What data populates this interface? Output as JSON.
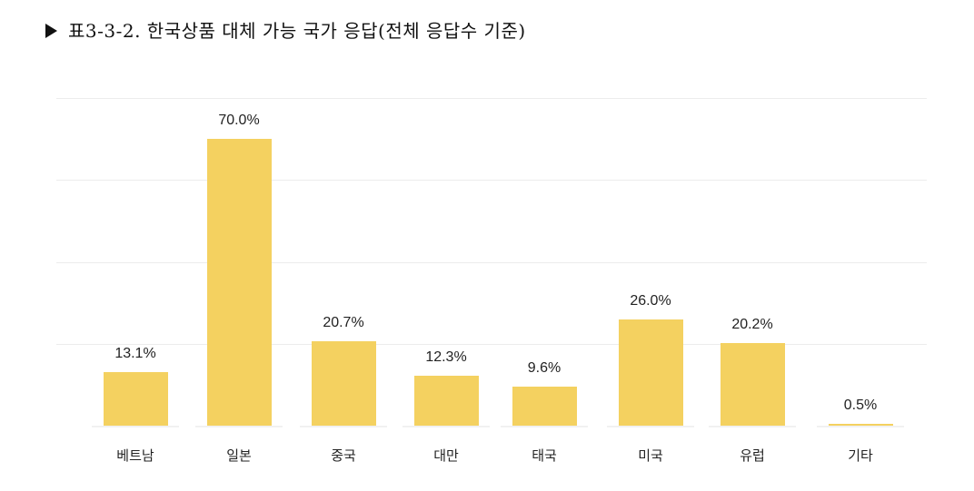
{
  "title": "표3-3-2. 한국상품 대체 가능 국가 응답(전체 응답수 기준)",
  "colors": {
    "bar": "#f4d160",
    "grid": "#ececec",
    "text": "#222222"
  },
  "chart_data": {
    "type": "bar",
    "title": "표3-3-2. 한국상품 대체 가능 국가 응답(전체 응답수 기준)",
    "xlabel": "",
    "ylabel": "",
    "categories": [
      "베트남",
      "일본",
      "중국",
      "대만",
      "태국",
      "미국",
      "유럽",
      "기타"
    ],
    "values": [
      13.1,
      70.0,
      20.7,
      12.3,
      9.6,
      26.0,
      20.2,
      0.5
    ],
    "value_labels": [
      "13.1%",
      "70.0%",
      "20.7%",
      "12.3%",
      "9.6%",
      "26.0%",
      "20.2%",
      "0.5%"
    ],
    "unit": "%",
    "ylim": [
      0,
      80
    ],
    "grid": true,
    "gridlines": [
      20,
      40,
      60,
      80
    ],
    "legend": "none",
    "y_axis_ticks_visible": false
  }
}
